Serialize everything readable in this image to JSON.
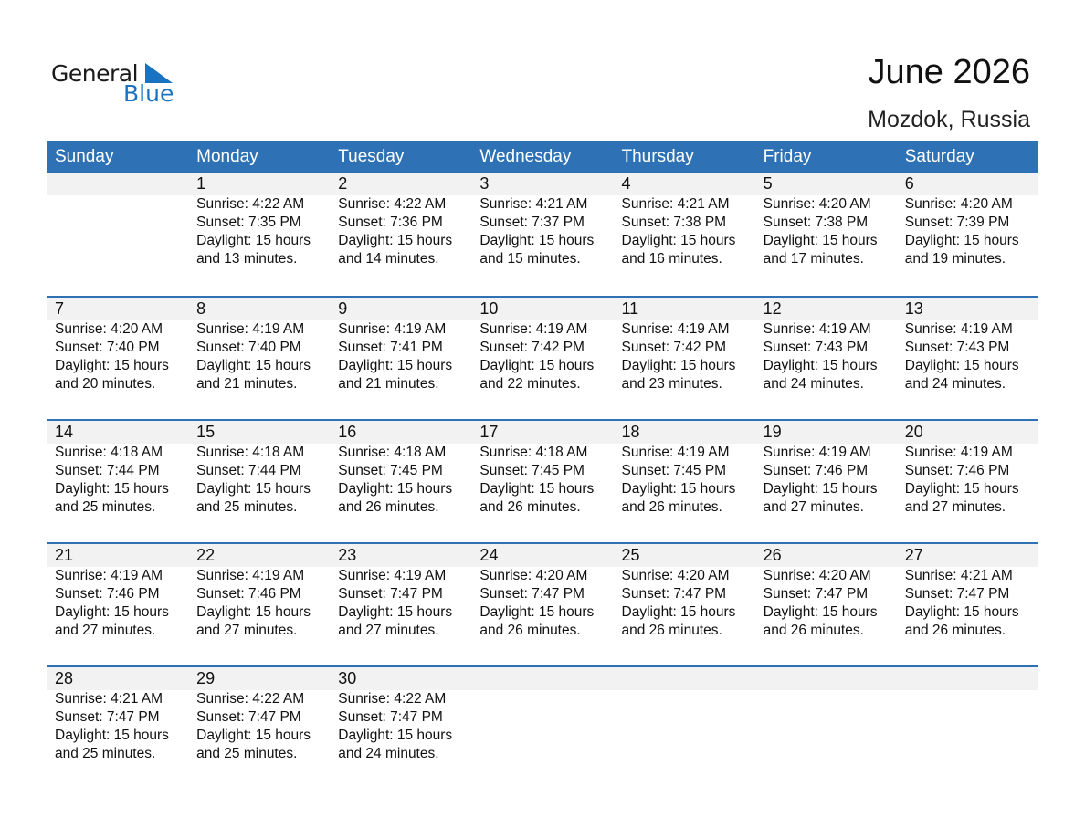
{
  "logo": {
    "text1": "General",
    "text2": "Blue"
  },
  "header": {
    "title": "June 2026",
    "location": "Mozdok, Russia"
  },
  "colors": {
    "accent": "#2E72B5",
    "band": "#F2F2F2",
    "logo_blue": "#1a73c0"
  },
  "weekdays": [
    "Sunday",
    "Monday",
    "Tuesday",
    "Wednesday",
    "Thursday",
    "Friday",
    "Saturday"
  ],
  "weeks": [
    [
      null,
      {
        "date": "1",
        "sunrise": "Sunrise: 4:22 AM",
        "sunset": "Sunset: 7:35 PM",
        "daylight": "Daylight: 15 hours",
        "minutes": "and 13 minutes."
      },
      {
        "date": "2",
        "sunrise": "Sunrise: 4:22 AM",
        "sunset": "Sunset: 7:36 PM",
        "daylight": "Daylight: 15 hours",
        "minutes": "and 14 minutes."
      },
      {
        "date": "3",
        "sunrise": "Sunrise: 4:21 AM",
        "sunset": "Sunset: 7:37 PM",
        "daylight": "Daylight: 15 hours",
        "minutes": "and 15 minutes."
      },
      {
        "date": "4",
        "sunrise": "Sunrise: 4:21 AM",
        "sunset": "Sunset: 7:38 PM",
        "daylight": "Daylight: 15 hours",
        "minutes": "and 16 minutes."
      },
      {
        "date": "5",
        "sunrise": "Sunrise: 4:20 AM",
        "sunset": "Sunset: 7:38 PM",
        "daylight": "Daylight: 15 hours",
        "minutes": "and 17 minutes."
      },
      {
        "date": "6",
        "sunrise": "Sunrise: 4:20 AM",
        "sunset": "Sunset: 7:39 PM",
        "daylight": "Daylight: 15 hours",
        "minutes": "and 19 minutes."
      }
    ],
    [
      {
        "date": "7",
        "sunrise": "Sunrise: 4:20 AM",
        "sunset": "Sunset: 7:40 PM",
        "daylight": "Daylight: 15 hours",
        "minutes": "and 20 minutes."
      },
      {
        "date": "8",
        "sunrise": "Sunrise: 4:19 AM",
        "sunset": "Sunset: 7:40 PM",
        "daylight": "Daylight: 15 hours",
        "minutes": "and 21 minutes."
      },
      {
        "date": "9",
        "sunrise": "Sunrise: 4:19 AM",
        "sunset": "Sunset: 7:41 PM",
        "daylight": "Daylight: 15 hours",
        "minutes": "and 21 minutes."
      },
      {
        "date": "10",
        "sunrise": "Sunrise: 4:19 AM",
        "sunset": "Sunset: 7:42 PM",
        "daylight": "Daylight: 15 hours",
        "minutes": "and 22 minutes."
      },
      {
        "date": "11",
        "sunrise": "Sunrise: 4:19 AM",
        "sunset": "Sunset: 7:42 PM",
        "daylight": "Daylight: 15 hours",
        "minutes": "and 23 minutes."
      },
      {
        "date": "12",
        "sunrise": "Sunrise: 4:19 AM",
        "sunset": "Sunset: 7:43 PM",
        "daylight": "Daylight: 15 hours",
        "minutes": "and 24 minutes."
      },
      {
        "date": "13",
        "sunrise": "Sunrise: 4:19 AM",
        "sunset": "Sunset: 7:43 PM",
        "daylight": "Daylight: 15 hours",
        "minutes": "and 24 minutes."
      }
    ],
    [
      {
        "date": "14",
        "sunrise": "Sunrise: 4:18 AM",
        "sunset": "Sunset: 7:44 PM",
        "daylight": "Daylight: 15 hours",
        "minutes": "and 25 minutes."
      },
      {
        "date": "15",
        "sunrise": "Sunrise: 4:18 AM",
        "sunset": "Sunset: 7:44 PM",
        "daylight": "Daylight: 15 hours",
        "minutes": "and 25 minutes."
      },
      {
        "date": "16",
        "sunrise": "Sunrise: 4:18 AM",
        "sunset": "Sunset: 7:45 PM",
        "daylight": "Daylight: 15 hours",
        "minutes": "and 26 minutes."
      },
      {
        "date": "17",
        "sunrise": "Sunrise: 4:18 AM",
        "sunset": "Sunset: 7:45 PM",
        "daylight": "Daylight: 15 hours",
        "minutes": "and 26 minutes."
      },
      {
        "date": "18",
        "sunrise": "Sunrise: 4:19 AM",
        "sunset": "Sunset: 7:45 PM",
        "daylight": "Daylight: 15 hours",
        "minutes": "and 26 minutes."
      },
      {
        "date": "19",
        "sunrise": "Sunrise: 4:19 AM",
        "sunset": "Sunset: 7:46 PM",
        "daylight": "Daylight: 15 hours",
        "minutes": "and 27 minutes."
      },
      {
        "date": "20",
        "sunrise": "Sunrise: 4:19 AM",
        "sunset": "Sunset: 7:46 PM",
        "daylight": "Daylight: 15 hours",
        "minutes": "and 27 minutes."
      }
    ],
    [
      {
        "date": "21",
        "sunrise": "Sunrise: 4:19 AM",
        "sunset": "Sunset: 7:46 PM",
        "daylight": "Daylight: 15 hours",
        "minutes": "and 27 minutes."
      },
      {
        "date": "22",
        "sunrise": "Sunrise: 4:19 AM",
        "sunset": "Sunset: 7:46 PM",
        "daylight": "Daylight: 15 hours",
        "minutes": "and 27 minutes."
      },
      {
        "date": "23",
        "sunrise": "Sunrise: 4:19 AM",
        "sunset": "Sunset: 7:47 PM",
        "daylight": "Daylight: 15 hours",
        "minutes": "and 27 minutes."
      },
      {
        "date": "24",
        "sunrise": "Sunrise: 4:20 AM",
        "sunset": "Sunset: 7:47 PM",
        "daylight": "Daylight: 15 hours",
        "minutes": "and 26 minutes."
      },
      {
        "date": "25",
        "sunrise": "Sunrise: 4:20 AM",
        "sunset": "Sunset: 7:47 PM",
        "daylight": "Daylight: 15 hours",
        "minutes": "and 26 minutes."
      },
      {
        "date": "26",
        "sunrise": "Sunrise: 4:20 AM",
        "sunset": "Sunset: 7:47 PM",
        "daylight": "Daylight: 15 hours",
        "minutes": "and 26 minutes."
      },
      {
        "date": "27",
        "sunrise": "Sunrise: 4:21 AM",
        "sunset": "Sunset: 7:47 PM",
        "daylight": "Daylight: 15 hours",
        "minutes": "and 26 minutes."
      }
    ],
    [
      {
        "date": "28",
        "sunrise": "Sunrise: 4:21 AM",
        "sunset": "Sunset: 7:47 PM",
        "daylight": "Daylight: 15 hours",
        "minutes": "and 25 minutes."
      },
      {
        "date": "29",
        "sunrise": "Sunrise: 4:22 AM",
        "sunset": "Sunset: 7:47 PM",
        "daylight": "Daylight: 15 hours",
        "minutes": "and 25 minutes."
      },
      {
        "date": "30",
        "sunrise": "Sunrise: 4:22 AM",
        "sunset": "Sunset: 7:47 PM",
        "daylight": "Daylight: 15 hours",
        "minutes": "and 24 minutes."
      },
      null,
      null,
      null,
      null
    ]
  ]
}
